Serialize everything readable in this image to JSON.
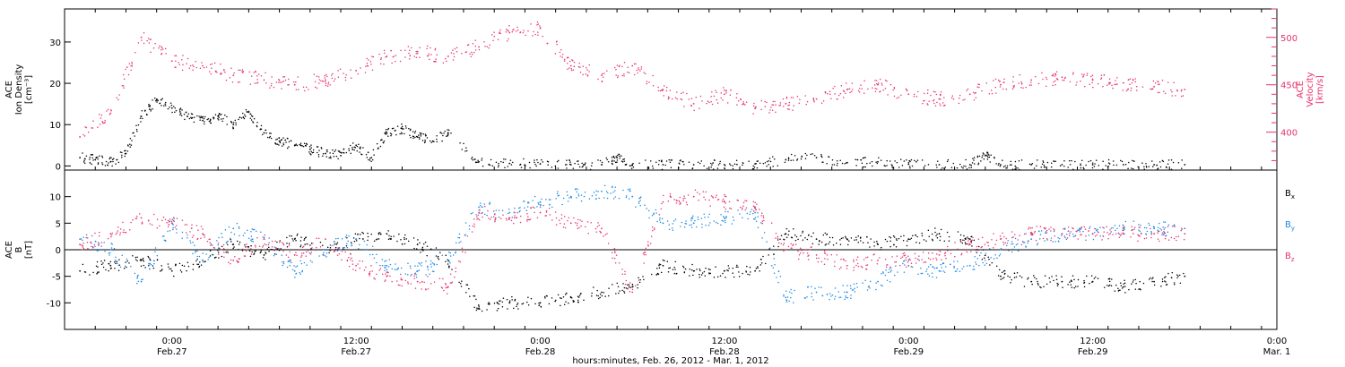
{
  "chart_data": [
    {
      "type": "scatter",
      "panel": "ion-density-velocity",
      "ylabel_left": [
        "ACE",
        "Ion Density",
        "[cm⁻³]"
      ],
      "ylabel_right": [
        "ACE",
        "Velocity",
        "[km/s]"
      ],
      "ylim": [
        -1,
        38
      ],
      "ylim_right": [
        360,
        530
      ],
      "yticks": [
        0,
        10,
        20,
        30
      ],
      "yticks_right": [
        400,
        450,
        500
      ],
      "series": [
        {
          "name": "Ion Density",
          "axis": "left",
          "color": "#000000",
          "x": [
            "2012-02-26 18:00",
            "2012-02-26 19:00",
            "2012-02-26 20:00",
            "2012-02-26 21:00",
            "2012-02-26 22:00",
            "2012-02-26 23:00",
            "2012-02-27 00:00",
            "2012-02-27 01:00",
            "2012-02-27 02:00",
            "2012-02-27 03:00",
            "2012-02-27 04:00",
            "2012-02-27 05:00",
            "2012-02-27 06:00",
            "2012-02-27 07:00",
            "2012-02-27 08:00",
            "2012-02-27 09:00",
            "2012-02-27 10:00",
            "2012-02-27 11:00",
            "2012-02-27 12:00",
            "2012-02-27 13:00",
            "2012-02-27 14:00",
            "2012-02-27 15:00",
            "2012-02-27 16:00",
            "2012-02-27 17:00",
            "2012-02-27 18:00",
            "2012-02-27 20:00",
            "2012-02-27 22:00",
            "2012-02-28 00:00",
            "2012-02-28 02:00",
            "2012-02-28 04:00",
            "2012-02-28 05:00",
            "2012-02-28 06:00",
            "2012-02-28 08:00",
            "2012-02-28 10:00",
            "2012-02-28 12:00",
            "2012-02-28 14:00",
            "2012-02-28 16:00",
            "2012-02-28 18:00",
            "2012-02-28 20:00",
            "2012-02-28 22:00",
            "2012-02-29 00:00",
            "2012-02-29 02:00",
            "2012-02-29 04:00",
            "2012-02-29 05:00",
            "2012-02-29 06:00",
            "2012-02-29 08:00",
            "2012-02-29 10:00",
            "2012-02-29 12:00",
            "2012-02-29 14:00",
            "2012-02-29 16:00",
            "2012-02-29 18:00"
          ],
          "values": [
            2,
            1.5,
            1,
            3,
            12,
            16,
            14,
            12,
            11,
            12,
            10,
            13,
            8,
            6,
            5,
            4,
            3,
            2.5,
            5,
            2,
            8,
            9,
            7,
            6,
            8,
            1,
            0.6,
            0.5,
            0.3,
            0.3,
            2,
            0.3,
            0.3,
            0.3,
            0.3,
            0.5,
            1.5,
            2,
            0.8,
            1,
            0.4,
            0.3,
            0.3,
            2.5,
            0.3,
            0.3,
            0.3,
            0.3,
            0.3,
            0.3,
            0.3
          ]
        },
        {
          "name": "Velocity",
          "axis": "right",
          "color": "#e8336b",
          "x": [
            "2012-02-26 18:00",
            "2012-02-26 20:00",
            "2012-02-26 22:00",
            "2012-02-27 00:00",
            "2012-02-27 02:00",
            "2012-02-27 04:00",
            "2012-02-27 06:00",
            "2012-02-27 08:00",
            "2012-02-27 10:00",
            "2012-02-27 12:00",
            "2012-02-27 14:00",
            "2012-02-27 16:00",
            "2012-02-27 18:00",
            "2012-02-27 20:00",
            "2012-02-27 22:00",
            "2012-02-28 00:00",
            "2012-02-28 02:00",
            "2012-02-28 04:00",
            "2012-02-28 06:00",
            "2012-02-28 08:00",
            "2012-02-28 10:00",
            "2012-02-28 12:00",
            "2012-02-28 14:00",
            "2012-02-28 16:00",
            "2012-02-28 18:00",
            "2012-02-28 20:00",
            "2012-02-28 22:00",
            "2012-02-29 00:00",
            "2012-02-29 02:00",
            "2012-02-29 04:00",
            "2012-02-29 06:00",
            "2012-02-29 08:00",
            "2012-02-29 10:00",
            "2012-02-29 12:00",
            "2012-02-29 14:00",
            "2012-02-29 16:00",
            "2012-02-29 18:00"
          ],
          "values": [
            395,
            420,
            500,
            475,
            470,
            460,
            455,
            450,
            455,
            465,
            480,
            485,
            480,
            490,
            505,
            510,
            470,
            460,
            470,
            445,
            430,
            440,
            425,
            430,
            435,
            445,
            450,
            440,
            435,
            440,
            450,
            455,
            458,
            455,
            452,
            448,
            445
          ]
        }
      ]
    },
    {
      "type": "scatter",
      "panel": "magnetic-field",
      "ylabel": [
        "ACE",
        "B",
        "[nT]"
      ],
      "ylim": [
        -15,
        15
      ],
      "yticks": [
        -10,
        -5,
        0,
        5,
        10
      ],
      "legend_position": "right",
      "x_axis_title": "hours:minutes, Feb. 26, 2012 - Mar.  1, 2012",
      "x_ticks": [
        {
          "time": "2012-02-27 00:00",
          "label": "0:00",
          "sublabel": "Feb.27"
        },
        {
          "time": "2012-02-27 12:00",
          "label": "12:00",
          "sublabel": "Feb.27"
        },
        {
          "time": "2012-02-28 00:00",
          "label": "0:00",
          "sublabel": "Feb.28"
        },
        {
          "time": "2012-02-28 12:00",
          "label": "12:00",
          "sublabel": "Feb.28"
        },
        {
          "time": "2012-02-29 00:00",
          "label": "0:00",
          "sublabel": "Feb.29"
        },
        {
          "time": "2012-02-29 12:00",
          "label": "12:00",
          "sublabel": "Feb.29"
        },
        {
          "time": "2012-03-01 00:00",
          "label": "0:00",
          "sublabel": "Mar. 1"
        }
      ],
      "xlim": [
        "2012-02-26 17:00",
        "2012-03-01 00:00"
      ],
      "series": [
        {
          "name": "Bx",
          "label_main": "B",
          "label_sub": "x",
          "color": "#000000",
          "x": [
            "2012-02-26 18:00",
            "2012-02-26 20:00",
            "2012-02-26 22:00",
            "2012-02-27 00:00",
            "2012-02-27 02:00",
            "2012-02-27 04:00",
            "2012-02-27 06:00",
            "2012-02-27 08:00",
            "2012-02-27 10:00",
            "2012-02-27 12:00",
            "2012-02-27 14:00",
            "2012-02-27 16:00",
            "2012-02-27 18:00",
            "2012-02-27 20:00",
            "2012-02-27 22:00",
            "2012-02-28 00:00",
            "2012-02-28 02:00",
            "2012-02-28 04:00",
            "2012-02-28 06:00",
            "2012-02-28 08:00",
            "2012-02-28 10:00",
            "2012-02-28 12:00",
            "2012-02-28 14:00",
            "2012-02-28 16:00",
            "2012-02-28 18:00",
            "2012-02-28 20:00",
            "2012-02-28 22:00",
            "2012-02-29 00:00",
            "2012-02-29 02:00",
            "2012-02-29 04:00",
            "2012-02-29 06:00",
            "2012-02-29 08:00",
            "2012-02-29 10:00",
            "2012-02-29 12:00",
            "2012-02-29 14:00",
            "2012-02-29 16:00",
            "2012-02-29 18:00"
          ],
          "values": [
            -4,
            -3,
            -2,
            -4,
            -2,
            1,
            -1,
            2,
            0,
            2,
            3,
            1,
            -2,
            -11,
            -10,
            -10,
            -9,
            -8,
            -7,
            -3,
            -4,
            -4,
            -4,
            3,
            2,
            2,
            1,
            2,
            3,
            2,
            -5,
            -6,
            -6,
            -6,
            -7,
            -6,
            -5
          ]
        },
        {
          "name": "By",
          "label_main": "B",
          "label_sub": "y",
          "color": "#1e88e5",
          "x": [
            "2012-02-26 18:00",
            "2012-02-26 20:00",
            "2012-02-26 22:00",
            "2012-02-27 00:00",
            "2012-02-27 02:00",
            "2012-02-27 04:00",
            "2012-02-27 06:00",
            "2012-02-27 08:00",
            "2012-02-27 10:00",
            "2012-02-27 12:00",
            "2012-02-27 14:00",
            "2012-02-27 16:00",
            "2012-02-27 18:00",
            "2012-02-27 20:00",
            "2012-02-27 22:00",
            "2012-02-28 00:00",
            "2012-02-28 02:00",
            "2012-02-28 04:00",
            "2012-02-28 06:00",
            "2012-02-28 08:00",
            "2012-02-28 10:00",
            "2012-02-28 12:00",
            "2012-02-28 14:00",
            "2012-02-28 16:00",
            "2012-02-28 18:00",
            "2012-02-28 20:00",
            "2012-02-28 22:00",
            "2012-02-29 00:00",
            "2012-02-29 02:00",
            "2012-02-29 04:00",
            "2012-02-29 06:00",
            "2012-02-29 08:00",
            "2012-02-29 10:00",
            "2012-02-29 12:00",
            "2012-02-29 14:00",
            "2012-02-29 16:00",
            "2012-02-29 18:00"
          ],
          "values": [
            2,
            0,
            -6,
            5,
            -2,
            4,
            2,
            -4,
            0,
            2,
            -3,
            -4,
            -2,
            8,
            7,
            9,
            10,
            11,
            10,
            5,
            5,
            6,
            7,
            -9,
            -8,
            -8,
            -6,
            -3,
            -4,
            -3,
            0,
            2,
            3,
            3,
            4,
            4,
            4
          ]
        },
        {
          "name": "Bz",
          "label_main": "B",
          "label_sub": "z",
          "color": "#e8336b",
          "x": [
            "2012-02-26 18:00",
            "2012-02-26 20:00",
            "2012-02-26 22:00",
            "2012-02-27 00:00",
            "2012-02-27 02:00",
            "2012-02-27 04:00",
            "2012-02-27 06:00",
            "2012-02-27 08:00",
            "2012-02-27 10:00",
            "2012-02-27 12:00",
            "2012-02-27 14:00",
            "2012-02-27 16:00",
            "2012-02-27 18:00",
            "2012-02-27 20:00",
            "2012-02-27 22:00",
            "2012-02-28 00:00",
            "2012-02-28 02:00",
            "2012-02-28 04:00",
            "2012-02-28 06:00",
            "2012-02-28 08:00",
            "2012-02-28 10:00",
            "2012-02-28 12:00",
            "2012-02-28 14:00",
            "2012-02-28 16:00",
            "2012-02-28 18:00",
            "2012-02-28 20:00",
            "2012-02-28 22:00",
            "2012-02-29 00:00",
            "2012-02-29 02:00",
            "2012-02-29 04:00",
            "2012-02-29 06:00",
            "2012-02-29 08:00",
            "2012-02-29 10:00",
            "2012-02-29 12:00",
            "2012-02-29 14:00",
            "2012-02-29 16:00",
            "2012-02-29 18:00"
          ],
          "values": [
            1,
            3,
            6,
            5,
            3,
            -2,
            2,
            -1,
            2,
            -3,
            -5,
            -6,
            -7,
            7,
            6,
            7,
            5,
            4,
            -8,
            9,
            10,
            9,
            8,
            0,
            -1,
            -3,
            -2,
            -2,
            -1,
            1,
            2,
            3,
            3,
            3,
            3,
            3,
            3
          ]
        }
      ]
    }
  ]
}
